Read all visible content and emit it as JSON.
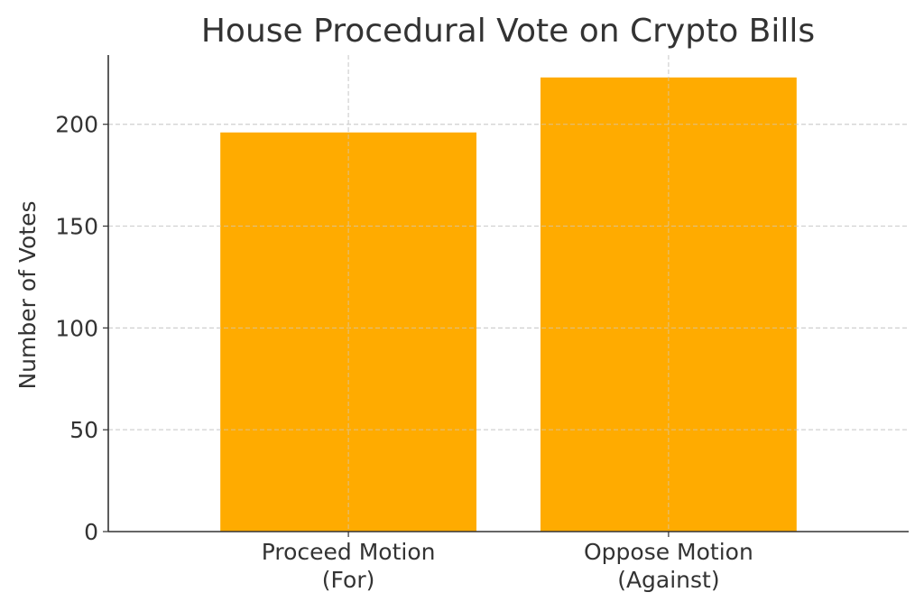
{
  "chart_data": {
    "type": "bar",
    "title": "House Procedural Vote on Crypto Bills",
    "xlabel": "",
    "ylabel": "Number of Votes",
    "categories": [
      [
        "Proceed Motion",
        "(For)"
      ],
      [
        "Oppose Motion",
        "(Against)"
      ]
    ],
    "values": [
      196,
      223
    ],
    "ylim": [
      0,
      234
    ],
    "yticks": [
      0,
      50,
      100,
      150,
      200
    ],
    "grid": true,
    "legend": "none",
    "colors": {
      "bar": "#FFAB00",
      "axis": "#333333",
      "grid": "#cccccc"
    }
  }
}
